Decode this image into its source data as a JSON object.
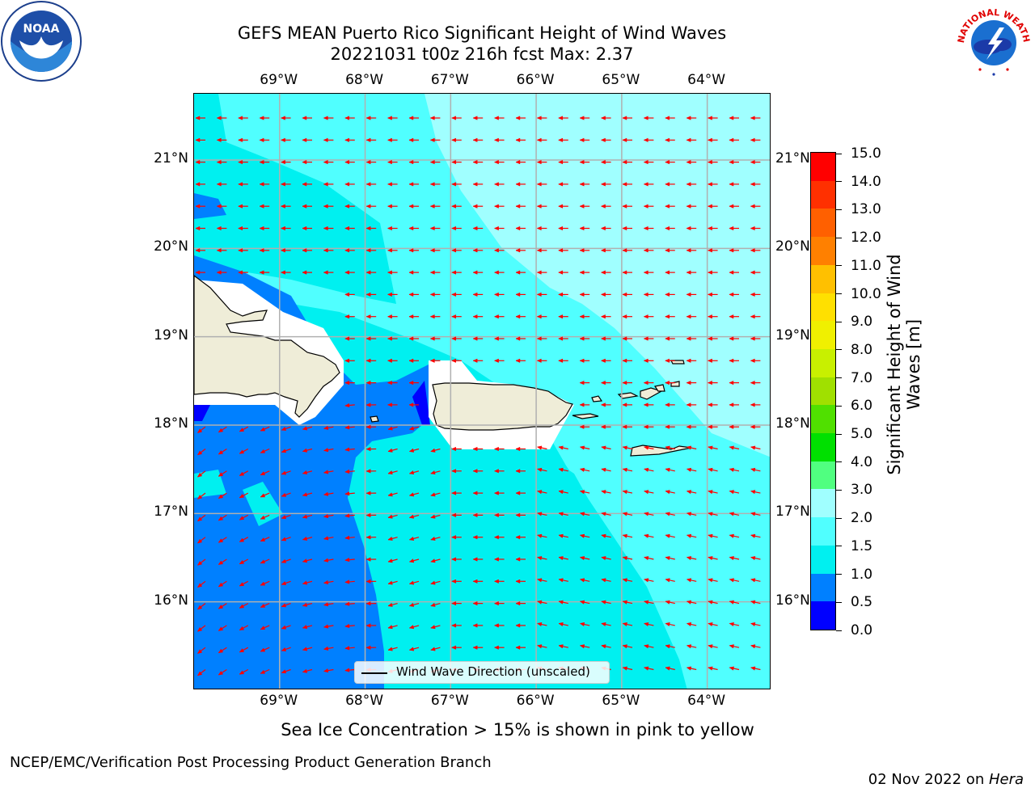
{
  "title": {
    "line1": "GEFS MEAN Puerto Rico Significant Height of Wind Waves",
    "line2": "20221031 t00z 216h fcst   Max: 2.37"
  },
  "logos": {
    "left": "NOAA",
    "right": "NATIONAL WEATHER SERVICE"
  },
  "map": {
    "lon_ticks": [
      "69°W",
      "68°W",
      "67°W",
      "66°W",
      "65°W",
      "64°W"
    ],
    "lat_ticks": [
      "21°N",
      "20°N",
      "19°N",
      "18°N",
      "17°N",
      "16°N"
    ],
    "lon_values": [
      -69,
      -68,
      -67,
      -66,
      -65,
      -64
    ],
    "lat_values": [
      21,
      20,
      19,
      18,
      17,
      16
    ],
    "extent": {
      "lon_min": -70,
      "lon_max": -63.25,
      "lat_min": 15.0,
      "lat_max": 21.75
    },
    "legend_label": "Wind Wave Direction (unscaled)",
    "wave_direction": "east-to-west",
    "arrow_color": "#ff0000",
    "land_color": "#efedd8"
  },
  "colorbar": {
    "label": "Significant Height of Wind Waves [m]",
    "label_line1": "Significant Height of Wind",
    "label_line2": "Waves [m]",
    "ticks": [
      "15.0",
      "14.0",
      "13.0",
      "12.0",
      "11.0",
      "10.0",
      "9.0",
      "8.0",
      "7.0",
      "6.0",
      "5.0",
      "4.0",
      "3.0",
      "2.0",
      "1.5",
      "1.0",
      "0.5",
      "0.0"
    ],
    "levels": [
      0.0,
      0.5,
      1.0,
      1.5,
      2.0,
      3.0,
      4.0,
      5.0,
      6.0,
      7.0,
      8.0,
      9.0,
      10.0,
      11.0,
      12.0,
      13.0,
      14.0,
      15.0
    ],
    "colors": [
      "#0000ff",
      "#0080ff",
      "#00f0f0",
      "#50ffff",
      "#a0ffff",
      "#50ff80",
      "#00e000",
      "#50e000",
      "#a0e000",
      "#c8f000",
      "#f0f000",
      "#ffe000",
      "#ffc000",
      "#ff8000",
      "#ff6000",
      "#ff3000",
      "#ff0000"
    ]
  },
  "subtitle": "Sea Ice Concentration > 15% is shown in pink to yellow",
  "footer": {
    "left": "NCEP/EMC/Verification Post Processing Product Generation Branch",
    "right_date": "02 Nov 2022 on ",
    "right_host": "Hera"
  }
}
